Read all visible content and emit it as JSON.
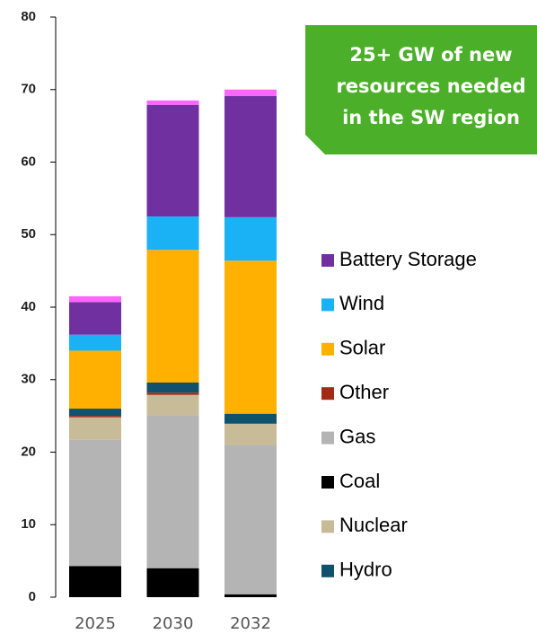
{
  "chart_data": {
    "type": "stacked_bar",
    "callout": [
      "25+ GW of new",
      "resources needed",
      "in the SW region"
    ],
    "categories": [
      "2025",
      "2030",
      "2032"
    ],
    "ylim": [
      0,
      80
    ],
    "yticks": [
      0,
      10,
      20,
      30,
      40,
      50,
      60,
      70,
      80
    ],
    "series": [
      {
        "name": "Coal",
        "color": "#000000",
        "values": [
          4.3,
          4.0,
          0.4
        ]
      },
      {
        "name": "Gas",
        "color": "#b4b4b4",
        "values": [
          17.4,
          21.1,
          20.6
        ]
      },
      {
        "name": "Nuclear",
        "color": "#c8bb98",
        "values": [
          3.1,
          2.8,
          2.9
        ]
      },
      {
        "name": "Other",
        "color": "#a32a16",
        "values": [
          0.2,
          0.3,
          0.1
        ]
      },
      {
        "name": "Hydro",
        "color": "#11516e",
        "values": [
          1.0,
          1.4,
          1.3
        ]
      },
      {
        "name": "Solar",
        "color": "#ffb000",
        "values": [
          8.0,
          18.3,
          21.1
        ]
      },
      {
        "name": "Wind",
        "color": "#1ab2f5",
        "values": [
          2.2,
          4.6,
          6.0
        ]
      },
      {
        "name": "Battery Storage",
        "color": "#7030a0",
        "values": [
          4.5,
          15.4,
          16.7
        ]
      },
      {
        "color": "#ff66ff",
        "values": [
          0.8,
          0.6,
          0.9
        ]
      }
    ]
  }
}
